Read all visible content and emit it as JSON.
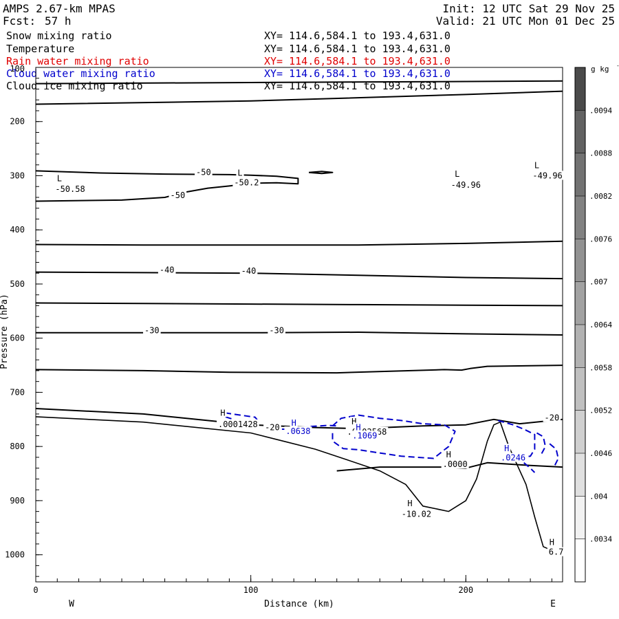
{
  "header": {
    "model": "AMPS 2.67-km MPAS",
    "fcst_label": "Fcst:",
    "fcst_value": "57 h",
    "init": "Init: 12 UTC Sat 29 Nov 25",
    "valid": "Valid: 21 UTC Mon 01 Dec 25"
  },
  "layers": [
    {
      "name": "Snow mixing ratio",
      "xy": "XY= 114.6,584.1 to 193.4,631.0",
      "color": "#000000"
    },
    {
      "name": "Temperature",
      "xy": "XY= 114.6,584.1 to 193.4,631.0",
      "color": "#000000"
    },
    {
      "name": "Rain water mixing ratio",
      "xy": "XY= 114.6,584.1 to 193.4,631.0",
      "color": "#e00000"
    },
    {
      "name": "Cloud water mixing ratio",
      "xy": "XY= 114.6,584.1 to 193.4,631.0",
      "color": "#0000cc"
    },
    {
      "name": "Cloud ice mixing ratio",
      "xy": "XY= 114.6,584.1 to 193.4,631.0",
      "color": "#000000"
    }
  ],
  "chart_data": {
    "type": "cross-section contour",
    "xlabel": "Distance (km)",
    "ylabel": "Pressure (hPa)",
    "xlim": [
      0,
      245
    ],
    "ylim": [
      1050,
      100
    ],
    "x_ticks": [
      0,
      100,
      200
    ],
    "x_minor_step": 10,
    "y_ticks": [
      200,
      300,
      400,
      500,
      600,
      700,
      800,
      900,
      1000
    ],
    "y_minor_step": 20,
    "y_top_label": "100",
    "end_labels": {
      "left": "W",
      "right": "E"
    },
    "colorbar": {
      "unit": "g kg",
      "unit_exp": "-1",
      "levels": [
        ".0034",
        ".004",
        ".0046",
        ".0052",
        ".0058",
        ".0064",
        ".007",
        ".0076",
        ".0082",
        ".0088",
        ".0094"
      ],
      "colors": [
        "#ffffff",
        "#f2f2f2",
        "#e0e0e0",
        "#d0d0d0",
        "#c0c0c0",
        "#b2b2b2",
        "#a2a2a2",
        "#929292",
        "#828282",
        "#727272",
        "#626262",
        "#4a4a4a"
      ]
    },
    "temperature_contours": [
      {
        "name": "isotherm-top-1",
        "points": [
          [
            0,
            130
          ],
          [
            100,
            128
          ],
          [
            200,
            126
          ],
          [
            245,
            125
          ]
        ]
      },
      {
        "name": "isotherm-top-2",
        "points": [
          [
            0,
            168
          ],
          [
            100,
            162
          ],
          [
            200,
            150
          ],
          [
            245,
            144
          ]
        ]
      },
      {
        "name": "isotherm-minus-50-upper",
        "points": [
          [
            0,
            291
          ],
          [
            30,
            295
          ],
          [
            60,
            297
          ],
          [
            90,
            298
          ],
          [
            100,
            299
          ],
          [
            112,
            301
          ],
          [
            122,
            305
          ],
          [
            122,
            315
          ],
          [
            112,
            313
          ],
          [
            100,
            314
          ],
          [
            90,
            319
          ],
          [
            80,
            323
          ],
          [
            70,
            330
          ],
          [
            60,
            340
          ],
          [
            40,
            345
          ],
          [
            0,
            347
          ]
        ]
      },
      {
        "name": "isotherm-minus-50-small",
        "points": [
          [
            127,
            294
          ],
          [
            133,
            292
          ],
          [
            138,
            294
          ],
          [
            133,
            296
          ],
          [
            127,
            294
          ]
        ]
      },
      {
        "name": "isotherm-430",
        "points": [
          [
            0,
            427
          ],
          [
            50,
            428
          ],
          [
            100,
            428
          ],
          [
            150,
            428
          ],
          [
            200,
            425
          ],
          [
            245,
            421
          ]
        ]
      },
      {
        "name": "isotherm-minus-40",
        "points": [
          [
            0,
            478
          ],
          [
            50,
            479
          ],
          [
            100,
            480
          ],
          [
            150,
            484
          ],
          [
            200,
            488
          ],
          [
            245,
            490
          ]
        ]
      },
      {
        "name": "isotherm-535",
        "points": [
          [
            0,
            535
          ],
          [
            50,
            536
          ],
          [
            100,
            537
          ],
          [
            150,
            538
          ],
          [
            200,
            539
          ],
          [
            245,
            540
          ]
        ]
      },
      {
        "name": "isotherm-minus-30",
        "points": [
          [
            0,
            590
          ],
          [
            50,
            590
          ],
          [
            100,
            590
          ],
          [
            150,
            589
          ],
          [
            200,
            592
          ],
          [
            245,
            594
          ]
        ]
      },
      {
        "name": "isotherm-660",
        "points": [
          [
            0,
            658
          ],
          [
            50,
            660
          ],
          [
            90,
            663
          ],
          [
            140,
            664
          ],
          [
            190,
            658
          ],
          [
            198,
            659
          ],
          [
            202,
            656
          ],
          [
            210,
            652
          ],
          [
            245,
            650
          ]
        ]
      },
      {
        "name": "isotherm-minus-20",
        "points": [
          [
            0,
            730
          ],
          [
            50,
            740
          ],
          [
            100,
            760
          ],
          [
            130,
            765
          ],
          [
            150,
            767
          ],
          [
            180,
            762
          ],
          [
            200,
            760
          ],
          [
            213,
            750
          ],
          [
            225,
            758
          ],
          [
            245,
            750
          ]
        ]
      },
      {
        "name": "isotherm-zero",
        "points": [
          [
            140,
            845
          ],
          [
            160,
            838
          ],
          [
            190,
            838
          ],
          [
            200,
            840
          ],
          [
            210,
            830
          ],
          [
            230,
            835
          ],
          [
            245,
            838
          ]
        ]
      }
    ],
    "terrain": [
      [
        0,
        745
      ],
      [
        50,
        755
      ],
      [
        100,
        775
      ],
      [
        115,
        790
      ],
      [
        130,
        805
      ],
      [
        145,
        825
      ],
      [
        160,
        845
      ],
      [
        172,
        870
      ],
      [
        180,
        910
      ],
      [
        192,
        920
      ],
      [
        200,
        900
      ],
      [
        205,
        860
      ],
      [
        210,
        790
      ],
      [
        213,
        760
      ],
      [
        216,
        755
      ],
      [
        220,
        800
      ],
      [
        228,
        870
      ],
      [
        232,
        930
      ],
      [
        236,
        985
      ],
      [
        240,
        992
      ],
      [
        245,
        992
      ]
    ],
    "cloud_water_contours": [
      {
        "name": "cloud-water-cell-1",
        "points": [
          [
            88,
            738
          ],
          [
            95,
            742
          ],
          [
            102,
            746
          ],
          [
            104,
            756
          ],
          [
            97,
            762
          ],
          [
            90,
            760
          ],
          [
            92,
            750
          ],
          [
            88,
            745
          ]
        ]
      },
      {
        "name": "cloud-water-cell-2",
        "points": [
          [
            110,
            768
          ],
          [
            120,
            768
          ],
          [
            128,
            763
          ],
          [
            136,
            761
          ],
          [
            140,
            762
          ]
        ]
      },
      {
        "name": "cloud-water-cell-3",
        "points": [
          [
            138,
            762
          ],
          [
            142,
            748
          ],
          [
            150,
            742
          ],
          [
            160,
            748
          ],
          [
            170,
            752
          ],
          [
            180,
            758
          ],
          [
            190,
            760
          ],
          [
            195,
            772
          ],
          [
            192,
            800
          ],
          [
            185,
            822
          ],
          [
            170,
            818
          ],
          [
            160,
            812
          ],
          [
            150,
            806
          ],
          [
            143,
            804
          ],
          [
            138,
            790
          ],
          [
            138,
            770
          ]
        ]
      },
      {
        "name": "cloud-water-cell-4",
        "points": [
          [
            215,
            752
          ],
          [
            222,
            760
          ],
          [
            227,
            768
          ],
          [
            232,
            778
          ],
          [
            232,
            805
          ],
          [
            230,
            818
          ],
          [
            226,
            820
          ]
        ]
      },
      {
        "name": "cloud-water-cell-5",
        "points": [
          [
            233,
            775
          ],
          [
            236,
            782
          ],
          [
            237,
            800
          ],
          [
            235,
            815
          ]
        ]
      },
      {
        "name": "cloud-water-cell-6",
        "points": [
          [
            239,
            795
          ],
          [
            242,
            805
          ],
          [
            243,
            822
          ],
          [
            241,
            838
          ]
        ]
      },
      {
        "name": "cloud-water-cell-7",
        "points": [
          [
            227,
            830
          ],
          [
            230,
            840
          ],
          [
            232,
            848
          ]
        ]
      }
    ],
    "labels": [
      {
        "text": "L",
        "x": 11,
        "p": 310,
        "color": "#000000"
      },
      {
        "text": "-50.58",
        "x": 16,
        "p": 330,
        "color": "#000000"
      },
      {
        "text": "L",
        "x": 95,
        "p": 300,
        "color": "#000000"
      },
      {
        "text": "-50.2",
        "x": 98,
        "p": 318,
        "color": "#000000"
      },
      {
        "text": "L",
        "x": 196,
        "p": 302,
        "color": "#000000"
      },
      {
        "text": "-49.96",
        "x": 200,
        "p": 322,
        "color": "#000000"
      },
      {
        "text": "L",
        "x": 233,
        "p": 286,
        "color": "#000000"
      },
      {
        "text": "-49.96",
        "x": 238,
        "p": 305,
        "color": "#000000"
      },
      {
        "text": "-50",
        "x": 78,
        "p": 299,
        "color": "#000000"
      },
      {
        "text": "-50",
        "x": 66,
        "p": 341,
        "color": "#000000"
      },
      {
        "text": "-40",
        "x": 61,
        "p": 479,
        "color": "#000000"
      },
      {
        "text": "-40",
        "x": 99,
        "p": 481,
        "color": "#000000"
      },
      {
        "text": "-30",
        "x": 54,
        "p": 591,
        "color": "#000000"
      },
      {
        "text": "-30",
        "x": 112,
        "p": 591,
        "color": "#000000"
      },
      {
        "text": "-20",
        "x": 110,
        "p": 770,
        "color": "#000000"
      },
      {
        "text": "-20",
        "x": 240,
        "p": 752,
        "color": "#000000"
      },
      {
        "text": "H",
        "x": 87,
        "p": 743,
        "color": "#000000"
      },
      {
        "text": ".0001428",
        "x": 94,
        "p": 764,
        "color": "#000000"
      },
      {
        "text": "H",
        "x": 120,
        "p": 762,
        "color": "#0000cc"
      },
      {
        "text": ".0638",
        "x": 122,
        "p": 777,
        "color": "#0000cc"
      },
      {
        "text": "H",
        "x": 148,
        "p": 759,
        "color": "#000000"
      },
      {
        "text": ".0002568",
        "x": 154,
        "p": 778,
        "color": "#000000"
      },
      {
        "text": "H",
        "x": 150,
        "p": 770,
        "color": "#0000cc"
      },
      {
        "text": ".1069",
        "x": 153,
        "p": 785,
        "color": "#0000cc"
      },
      {
        "text": "H",
        "x": 192,
        "p": 820,
        "color": "#000000"
      },
      {
        "text": ".0000",
        "x": 195,
        "p": 838,
        "color": "#000000"
      },
      {
        "text": "H",
        "x": 219,
        "p": 809,
        "color": "#0000cc"
      },
      {
        "text": ".0246",
        "x": 222,
        "p": 826,
        "color": "#0000cc"
      },
      {
        "text": "H",
        "x": 174,
        "p": 910,
        "color": "#000000"
      },
      {
        "text": "-10.02",
        "x": 177,
        "p": 930,
        "color": "#000000"
      },
      {
        "text": "H",
        "x": 240,
        "p": 982,
        "color": "#000000"
      },
      {
        "text": "6.7",
        "x": 242,
        "p": 1000,
        "color": "#000000"
      }
    ]
  }
}
